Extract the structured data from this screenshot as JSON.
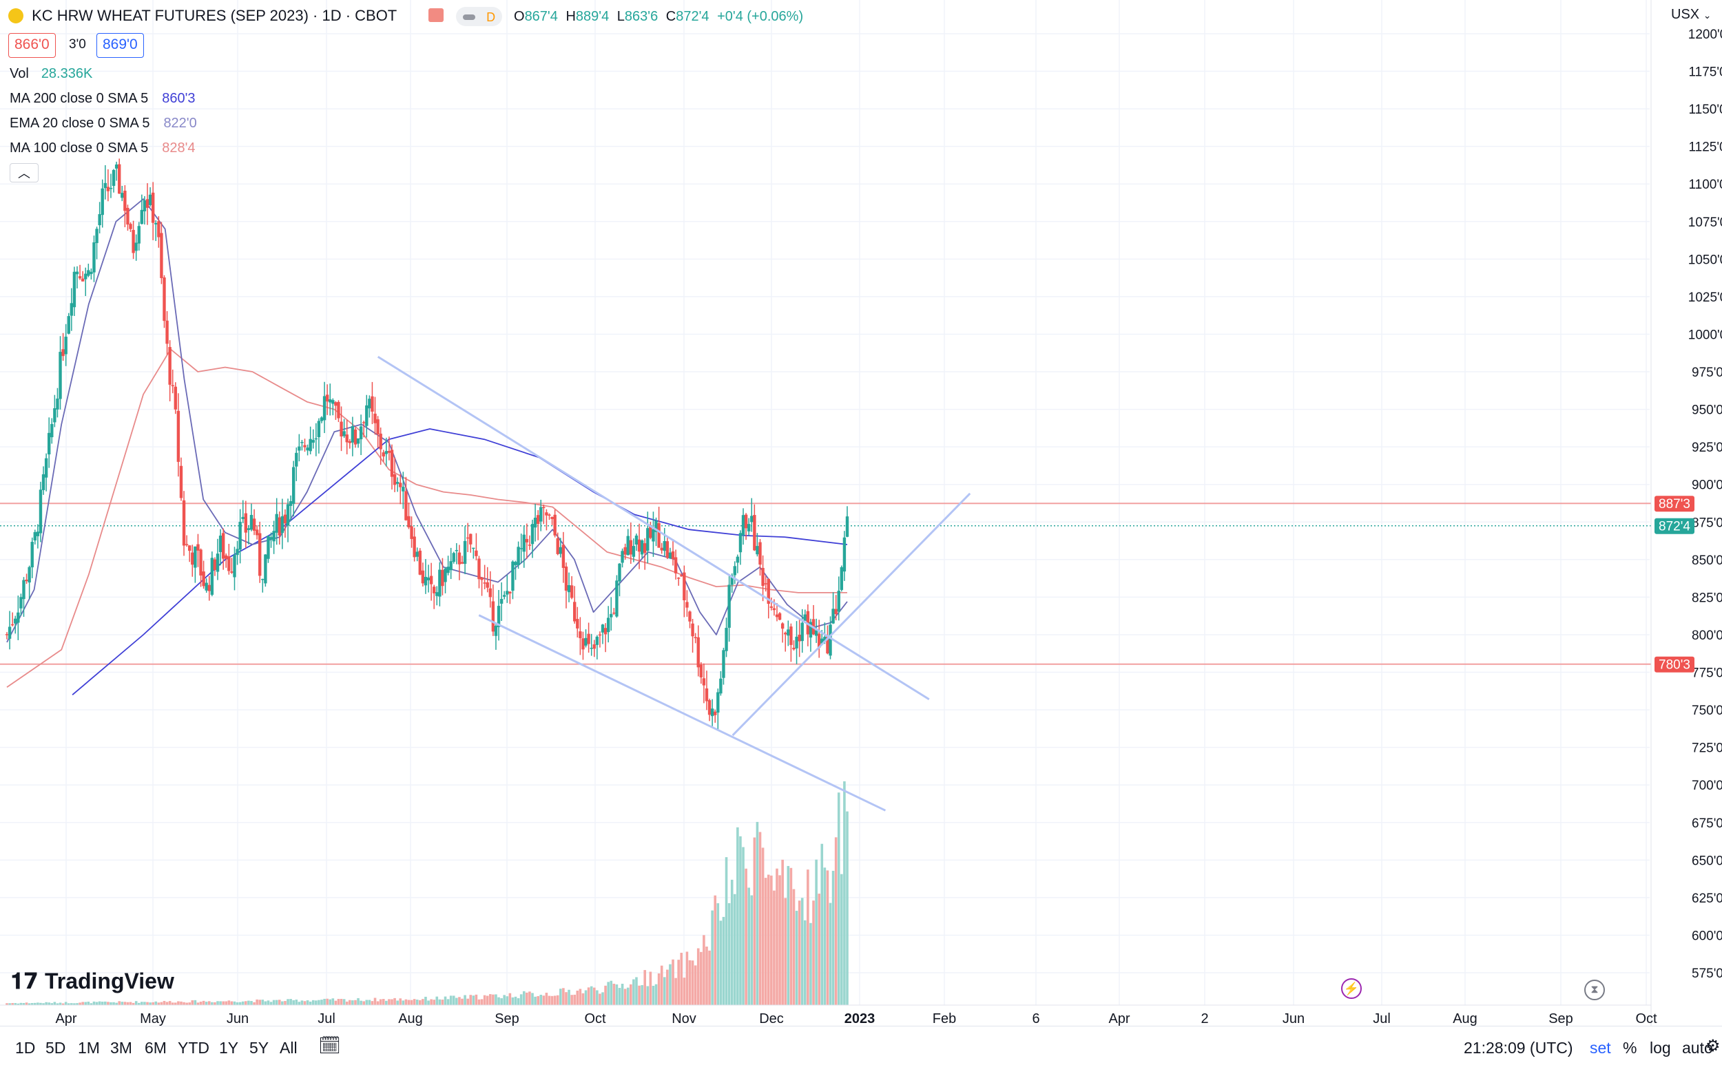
{
  "header": {
    "symbol_title": "KC HRW WHEAT FUTURES (SEP 2023) · 1D · CBOT",
    "badge": "D",
    "ohlc": {
      "o_label": "O",
      "o": "867'4",
      "h_label": "H",
      "h": "889'4",
      "l_label": "L",
      "l": "863'6",
      "c_label": "C",
      "c": "872'4",
      "chg": "+0'4 (+0.06%)"
    },
    "bid": "866'0",
    "spread": "3'0",
    "ask": "869'0",
    "currency": "USX"
  },
  "legend": {
    "vol_label": "Vol",
    "vol_value": "28.336K",
    "ma200_label": "MA 200 close 0 SMA 5",
    "ma200_value": "860'3",
    "ema20_label": "EMA 20 close 0 SMA 5",
    "ema20_value": "822'0",
    "ma100_label": "MA 100 close 0 SMA 5",
    "ma100_value": "828'4",
    "collapse_icon": "chevron-up-icon"
  },
  "colors": {
    "up": "#26a69a",
    "down": "#ef5350",
    "ma200": "#3f3fd6",
    "ema20": "#6a6ab6",
    "ma100": "#e88a8a",
    "trendline": "#b3c4f5",
    "level": "#f2a0a0",
    "last_price": "#26a69a"
  },
  "bottom": {
    "timeframes": [
      "1D",
      "5D",
      "1M",
      "3M",
      "6M",
      "YTD",
      "1Y",
      "5Y",
      "All"
    ],
    "calendar_icon": "calendar-icon",
    "clock": "21:28:09 (UTC)",
    "set": "set",
    "percent": "%",
    "log": "log",
    "auto": "auto",
    "settings_icon": "gear-icon"
  },
  "chart_data": {
    "type": "candlestick",
    "title": "KC HRW WHEAT FUTURES (SEP 2023) · 1D · CBOT",
    "ylabel": "USX",
    "ylim": [
      560,
      1205
    ],
    "y_ticks": [
      "575'0",
      "600'0",
      "625'0",
      "650'0",
      "675'0",
      "700'0",
      "725'0",
      "750'0",
      "775'0",
      "800'0",
      "825'0",
      "850'0",
      "875'0",
      "900'0",
      "925'0",
      "950'0",
      "975'0",
      "1000'0",
      "1025'0",
      "1050'0",
      "1075'0",
      "1100'0",
      "1125'0",
      "1150'0",
      "1175'0",
      "1200'0"
    ],
    "x_ticks": [
      "Apr",
      "May",
      "Jun",
      "Jul",
      "Aug",
      "Sep",
      "Oct",
      "Nov",
      "Dec",
      "2023",
      "Feb",
      "6",
      "Apr",
      "2",
      "Jun",
      "Jul",
      "Aug",
      "Sep",
      "Oct"
    ],
    "price_labels": [
      {
        "label": "887'3",
        "value": 887.4,
        "color": "#ef5350"
      },
      {
        "label": "872'4",
        "value": 872.5,
        "color": "#26a69a"
      },
      {
        "label": "780'3",
        "value": 780.4,
        "color": "#ef5350"
      }
    ],
    "close_series": [
      {
        "t": 0.0,
        "c": 800
      },
      {
        "t": 0.5,
        "c": 825
      },
      {
        "t": 1.0,
        "c": 860
      },
      {
        "t": 1.5,
        "c": 920
      },
      {
        "t": 2.0,
        "c": 985
      },
      {
        "t": 2.5,
        "c": 1045
      },
      {
        "t": 3.0,
        "c": 1040
      },
      {
        "t": 3.5,
        "c": 1090
      },
      {
        "t": 4.0,
        "c": 1105
      },
      {
        "t": 4.3,
        "c": 1090
      },
      {
        "t": 4.6,
        "c": 1055
      },
      {
        "t": 5.0,
        "c": 1095
      },
      {
        "t": 5.5,
        "c": 1075
      },
      {
        "t": 5.8,
        "c": 1000
      },
      {
        "t": 6.2,
        "c": 940
      },
      {
        "t": 6.5,
        "c": 860
      },
      {
        "t": 7.0,
        "c": 850
      },
      {
        "t": 7.3,
        "c": 830
      },
      {
        "t": 7.8,
        "c": 860
      },
      {
        "t": 8.2,
        "c": 845
      },
      {
        "t": 8.5,
        "c": 870
      },
      {
        "t": 8.8,
        "c": 870
      },
      {
        "t": 9.0,
        "c": 880
      },
      {
        "t": 9.3,
        "c": 840
      },
      {
        "t": 9.8,
        "c": 870
      },
      {
        "t": 10.2,
        "c": 880
      },
      {
        "t": 10.6,
        "c": 915
      },
      {
        "t": 11.0,
        "c": 930
      },
      {
        "t": 11.4,
        "c": 940
      },
      {
        "t": 11.7,
        "c": 960
      },
      {
        "t": 12.0,
        "c": 945
      },
      {
        "t": 12.4,
        "c": 935
      },
      {
        "t": 12.8,
        "c": 930
      },
      {
        "t": 13.2,
        "c": 955
      },
      {
        "t": 13.6,
        "c": 930
      },
      {
        "t": 14.0,
        "c": 915
      },
      {
        "t": 14.4,
        "c": 900
      },
      {
        "t": 14.8,
        "c": 870
      },
      {
        "t": 15.2,
        "c": 840
      },
      {
        "t": 15.6,
        "c": 825
      },
      {
        "t": 16.0,
        "c": 840
      },
      {
        "t": 16.5,
        "c": 850
      },
      {
        "t": 17.0,
        "c": 860
      },
      {
        "t": 17.4,
        "c": 840
      },
      {
        "t": 17.8,
        "c": 810
      },
      {
        "t": 18.2,
        "c": 820
      },
      {
        "t": 18.6,
        "c": 845
      },
      {
        "t": 19.0,
        "c": 860
      },
      {
        "t": 19.4,
        "c": 875
      },
      {
        "t": 19.8,
        "c": 880
      },
      {
        "t": 20.2,
        "c": 860
      },
      {
        "t": 20.6,
        "c": 825
      },
      {
        "t": 21.0,
        "c": 805
      },
      {
        "t": 21.4,
        "c": 785
      },
      {
        "t": 21.8,
        "c": 800
      },
      {
        "t": 22.2,
        "c": 815
      },
      {
        "t": 22.6,
        "c": 855
      },
      {
        "t": 23.0,
        "c": 865
      },
      {
        "t": 23.4,
        "c": 860
      },
      {
        "t": 23.8,
        "c": 870
      },
      {
        "t": 24.2,
        "c": 855
      },
      {
        "t": 24.6,
        "c": 840
      },
      {
        "t": 25.0,
        "c": 815
      },
      {
        "t": 25.4,
        "c": 780
      },
      {
        "t": 25.8,
        "c": 745
      },
      {
        "t": 26.1,
        "c": 760
      },
      {
        "t": 26.5,
        "c": 830
      },
      {
        "t": 26.9,
        "c": 870
      },
      {
        "t": 27.2,
        "c": 880
      },
      {
        "t": 27.6,
        "c": 845
      },
      {
        "t": 28.0,
        "c": 825
      },
      {
        "t": 28.4,
        "c": 810
      },
      {
        "t": 28.8,
        "c": 790
      },
      {
        "t": 29.2,
        "c": 810
      },
      {
        "t": 29.6,
        "c": 800
      },
      {
        "t": 30.0,
        "c": 790
      },
      {
        "t": 30.4,
        "c": 820
      },
      {
        "t": 30.8,
        "c": 872
      }
    ],
    "ma200": [
      [
        2.4,
        760
      ],
      [
        5,
        800
      ],
      [
        8,
        850
      ],
      [
        10,
        870
      ],
      [
        12,
        900
      ],
      [
        14,
        930
      ],
      [
        15.5,
        937
      ],
      [
        17.5,
        930
      ],
      [
        19.5,
        918
      ],
      [
        21.5,
        895
      ],
      [
        23,
        880
      ],
      [
        25,
        870
      ],
      [
        27,
        866
      ],
      [
        28.5,
        865
      ],
      [
        30.8,
        860
      ]
    ],
    "ema20": [
      [
        0,
        795
      ],
      [
        1,
        830
      ],
      [
        2,
        940
      ],
      [
        3,
        1020
      ],
      [
        4,
        1075
      ],
      [
        5,
        1090
      ],
      [
        5.8,
        1070
      ],
      [
        6.5,
        970
      ],
      [
        7.2,
        890
      ],
      [
        8,
        868
      ],
      [
        9,
        860
      ],
      [
        10,
        865
      ],
      [
        11,
        895
      ],
      [
        12,
        935
      ],
      [
        13,
        940
      ],
      [
        14,
        928
      ],
      [
        15,
        880
      ],
      [
        16,
        845
      ],
      [
        17,
        840
      ],
      [
        18,
        835
      ],
      [
        19,
        850
      ],
      [
        20,
        870
      ],
      [
        20.8,
        850
      ],
      [
        21.5,
        815
      ],
      [
        22.5,
        835
      ],
      [
        23.5,
        855
      ],
      [
        24.5,
        850
      ],
      [
        25.4,
        815
      ],
      [
        26,
        800
      ],
      [
        26.8,
        835
      ],
      [
        27.6,
        845
      ],
      [
        28.6,
        820
      ],
      [
        29.6,
        805
      ],
      [
        30.2,
        808
      ],
      [
        30.8,
        822
      ]
    ],
    "ma100": [
      [
        0,
        765
      ],
      [
        2,
        790
      ],
      [
        3,
        840
      ],
      [
        4,
        900
      ],
      [
        5,
        960
      ],
      [
        6,
        990
      ],
      [
        7,
        975
      ],
      [
        8,
        978
      ],
      [
        9,
        975
      ],
      [
        10,
        965
      ],
      [
        11,
        955
      ],
      [
        12,
        950
      ],
      [
        13,
        935
      ],
      [
        14,
        910
      ],
      [
        15,
        900
      ],
      [
        16,
        895
      ],
      [
        17,
        893
      ],
      [
        18,
        890
      ],
      [
        19,
        888
      ],
      [
        20,
        885
      ],
      [
        21,
        870
      ],
      [
        22,
        855
      ],
      [
        23,
        850
      ],
      [
        24,
        845
      ],
      [
        25,
        838
      ],
      [
        26,
        832
      ],
      [
        27,
        833
      ],
      [
        28,
        830
      ],
      [
        29,
        828
      ],
      [
        30.8,
        828
      ]
    ],
    "trendlines": [
      {
        "from": [
          13.6,
          985
        ],
        "to": [
          33.8,
          757
        ]
      },
      {
        "from": [
          17.3,
          813
        ],
        "to": [
          32.2,
          683
        ]
      },
      {
        "from": [
          26.6,
          733
        ],
        "to": [
          35.3,
          894
        ]
      }
    ],
    "horizontal_levels": [
      887.4,
      780.4
    ],
    "volume_max": 105,
    "volume_profile": [
      [
        0,
        1
      ],
      [
        8,
        2
      ],
      [
        15,
        3
      ],
      [
        17,
        4
      ],
      [
        18.5,
        5
      ],
      [
        20,
        6
      ],
      [
        21.5,
        8
      ],
      [
        22.5,
        10
      ],
      [
        23.5,
        14
      ],
      [
        24.2,
        16
      ],
      [
        25,
        22
      ],
      [
        25.6,
        30
      ],
      [
        26,
        45
      ],
      [
        26.5,
        60
      ],
      [
        27,
        75
      ],
      [
        27.5,
        85
      ],
      [
        28,
        60
      ],
      [
        28.5,
        55
      ],
      [
        29,
        50
      ],
      [
        29.5,
        60
      ],
      [
        30,
        65
      ],
      [
        30.4,
        80
      ],
      [
        30.8,
        105
      ]
    ]
  }
}
